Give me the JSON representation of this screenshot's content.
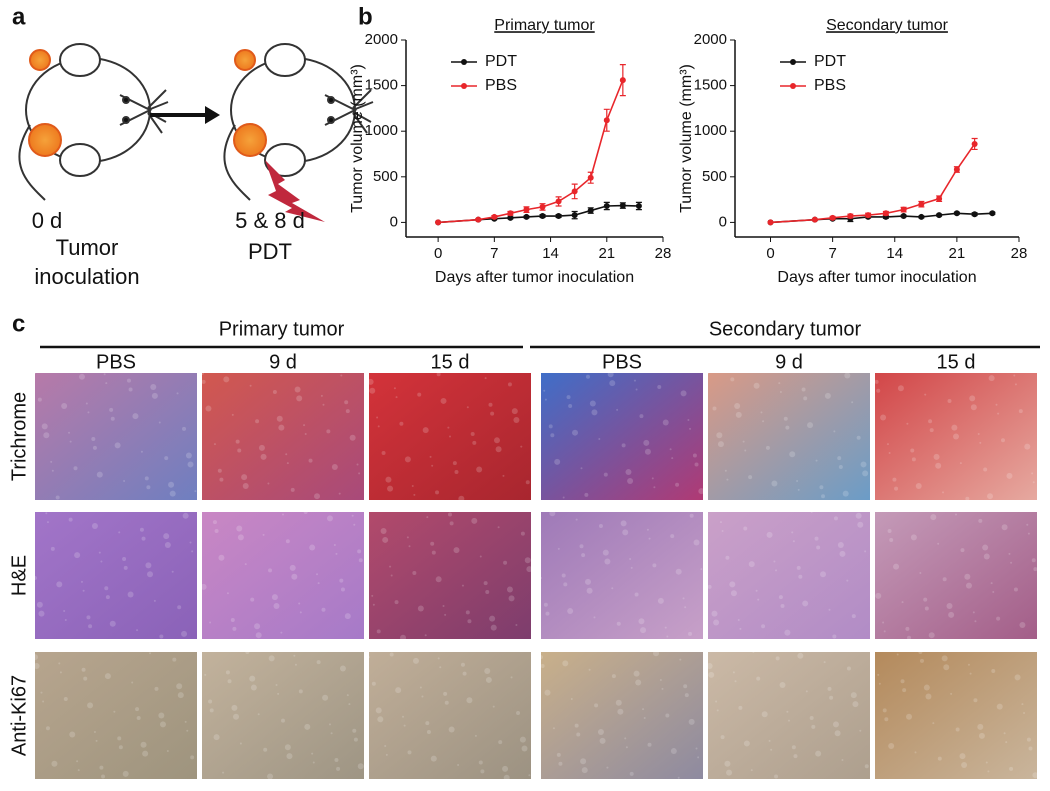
{
  "panel_labels": [
    "a",
    "b",
    "c"
  ],
  "panel_a": {
    "steps": [
      {
        "day": "0 d",
        "label": "Tumor inoculation"
      },
      {
        "day": "5 & 8 d",
        "label": "PDT"
      }
    ]
  },
  "chart_data": [
    {
      "type": "line",
      "title": "Primary tumor",
      "xlabel": "Days after tumor inoculation",
      "ylabel": "Tumor volume (mm³)",
      "xlim": [
        -4,
        28
      ],
      "xticks": [
        0,
        7,
        14,
        21,
        28
      ],
      "ylim": [
        -160,
        2000
      ],
      "yticks": [
        0,
        500,
        1000,
        1500,
        2000
      ],
      "legend": "upper left",
      "series": [
        {
          "name": "PDT",
          "color": "#111111",
          "x": [
            0,
            5,
            7,
            9,
            11,
            13,
            15,
            17,
            19,
            21,
            23,
            25
          ],
          "values": [
            0,
            30,
            40,
            50,
            60,
            70,
            70,
            80,
            130,
            180,
            185,
            180
          ],
          "errors": [
            0,
            5,
            8,
            10,
            10,
            15,
            15,
            40,
            30,
            40,
            30,
            40
          ]
        },
        {
          "name": "PBS",
          "color": "#e8262b",
          "x": [
            0,
            5,
            7,
            9,
            11,
            13,
            15,
            17,
            19,
            21,
            23
          ],
          "values": [
            0,
            30,
            60,
            100,
            140,
            170,
            230,
            340,
            490,
            1120,
            1560
          ],
          "errors": [
            0,
            10,
            15,
            20,
            30,
            35,
            50,
            80,
            60,
            120,
            170
          ]
        }
      ]
    },
    {
      "type": "line",
      "title": "Secondary tumor",
      "xlabel": "Days after tumor inoculation",
      "ylabel": "Tumor volume (mm³)",
      "xlim": [
        -4,
        28
      ],
      "xticks": [
        0,
        7,
        14,
        21,
        28
      ],
      "ylim": [
        -160,
        2000
      ],
      "yticks": [
        0,
        500,
        1000,
        1500,
        2000
      ],
      "legend": "upper left",
      "series": [
        {
          "name": "PDT",
          "color": "#111111",
          "x": [
            0,
            5,
            7,
            9,
            11,
            13,
            15,
            17,
            19,
            21,
            23,
            25
          ],
          "values": [
            0,
            30,
            40,
            40,
            60,
            60,
            70,
            60,
            80,
            100,
            90,
            100
          ],
          "errors": [
            0,
            5,
            10,
            30,
            10,
            15,
            10,
            10,
            10,
            10,
            15,
            10
          ]
        },
        {
          "name": "PBS",
          "color": "#e8262b",
          "x": [
            0,
            5,
            7,
            9,
            11,
            13,
            15,
            17,
            19,
            21,
            23
          ],
          "values": [
            0,
            30,
            50,
            70,
            80,
            100,
            140,
            200,
            260,
            580,
            860
          ],
          "errors": [
            0,
            5,
            15,
            20,
            20,
            20,
            25,
            30,
            30,
            30,
            60
          ]
        }
      ]
    }
  ],
  "panel_c": {
    "groups": [
      "Primary tumor",
      "Secondary tumor"
    ],
    "columns": [
      "PBS",
      "9 d",
      "15 d",
      "PBS",
      "9 d",
      "15 d"
    ],
    "rows": [
      "Trichrome",
      "H&E",
      "Anti-Ki67"
    ]
  }
}
